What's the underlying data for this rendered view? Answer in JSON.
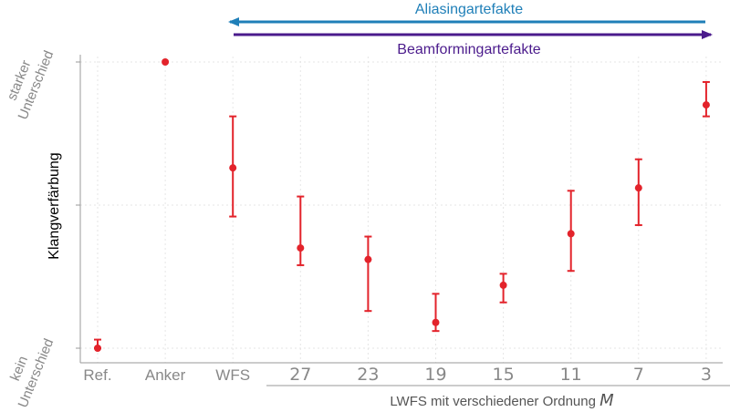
{
  "chart_data": {
    "type": "scatter",
    "categories": [
      "Ref.",
      "Anker",
      "WFS",
      "27",
      "23",
      "19",
      "15",
      "11",
      "7",
      "3"
    ],
    "series": [
      {
        "values": [
          0.0,
          1.0,
          0.63,
          0.35,
          0.31,
          0.09,
          0.22,
          0.4,
          0.56,
          0.85
        ],
        "error_low": [
          0.0,
          1.0,
          0.46,
          0.29,
          0.13,
          0.06,
          0.16,
          0.27,
          0.43,
          0.81
        ],
        "error_high": [
          0.03,
          1.0,
          0.81,
          0.53,
          0.39,
          0.19,
          0.26,
          0.55,
          0.66,
          0.93
        ]
      }
    ],
    "ylabel": "Klangverfärbung",
    "y_tick_labels": {
      "bottom": [
        "kein",
        "Unterschied"
      ],
      "top": [
        "starker",
        "Unterschied"
      ]
    },
    "x_group_label": "LWFS mit verschiedener Ordnung",
    "x_group_symbol": "M",
    "ylim": [
      0,
      1
    ],
    "grid": true,
    "annotations": [
      {
        "text": "Aliasingartefakte",
        "direction": "left",
        "color": "#1f7fb8"
      },
      {
        "text": "Beamformingartefakte",
        "direction": "right",
        "color": "#4b1b8c"
      }
    ],
    "colors": {
      "points": "#e3232b",
      "grid": "#e6e6e6",
      "axis": "#999999"
    }
  }
}
